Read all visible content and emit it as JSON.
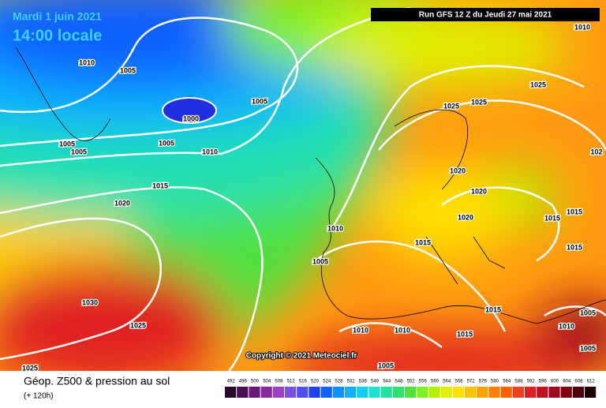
{
  "header": {
    "date": "Mardi 1 juin 2021",
    "time": "14:00 locale",
    "run": "Run GFS 12 Z du Jeudi 27 mai 2021"
  },
  "isobars": [
    "1010",
    "1005",
    "1000",
    "1005",
    "1005",
    "1005",
    "1005",
    "1010",
    "1015",
    "1020",
    "1010",
    "1025",
    "1025",
    "1025",
    "1020",
    "1020",
    "1020",
    "1015",
    "1015",
    "1010",
    "1015",
    "1015",
    "1005",
    "1030",
    "1025",
    "1010",
    "1010",
    "1015",
    "1015",
    "1010",
    "1005",
    "1005",
    "1005",
    "1025",
    "102"
  ],
  "copyright": "Copyright © 2021 Meteociel.fr",
  "footer": {
    "title": "Géop. Z500 & pression au sol",
    "lead": "(+ 120h)"
  },
  "scale": {
    "values": [
      492,
      496,
      500,
      504,
      508,
      512,
      516,
      520,
      524,
      528,
      532,
      536,
      540,
      544,
      548,
      552,
      556,
      560,
      564,
      568,
      572,
      576,
      580,
      584,
      588,
      592,
      596,
      600,
      604,
      608,
      612
    ],
    "colors": [
      "#2a0a2a",
      "#4a1050",
      "#6a1a78",
      "#8a2aa0",
      "#9a40c0",
      "#7a50e0",
      "#5050f0",
      "#2040f0",
      "#1060ff",
      "#1090ff",
      "#10b0ff",
      "#10d0f0",
      "#20e0d0",
      "#20e0a0",
      "#30e070",
      "#50e040",
      "#80f020",
      "#b0f000",
      "#e0f000",
      "#ffe000",
      "#ffc000",
      "#ffa000",
      "#ff8000",
      "#ff6000",
      "#f04020",
      "#e02020",
      "#c01020",
      "#a00820",
      "#800010",
      "#500008",
      "#200000"
    ]
  }
}
